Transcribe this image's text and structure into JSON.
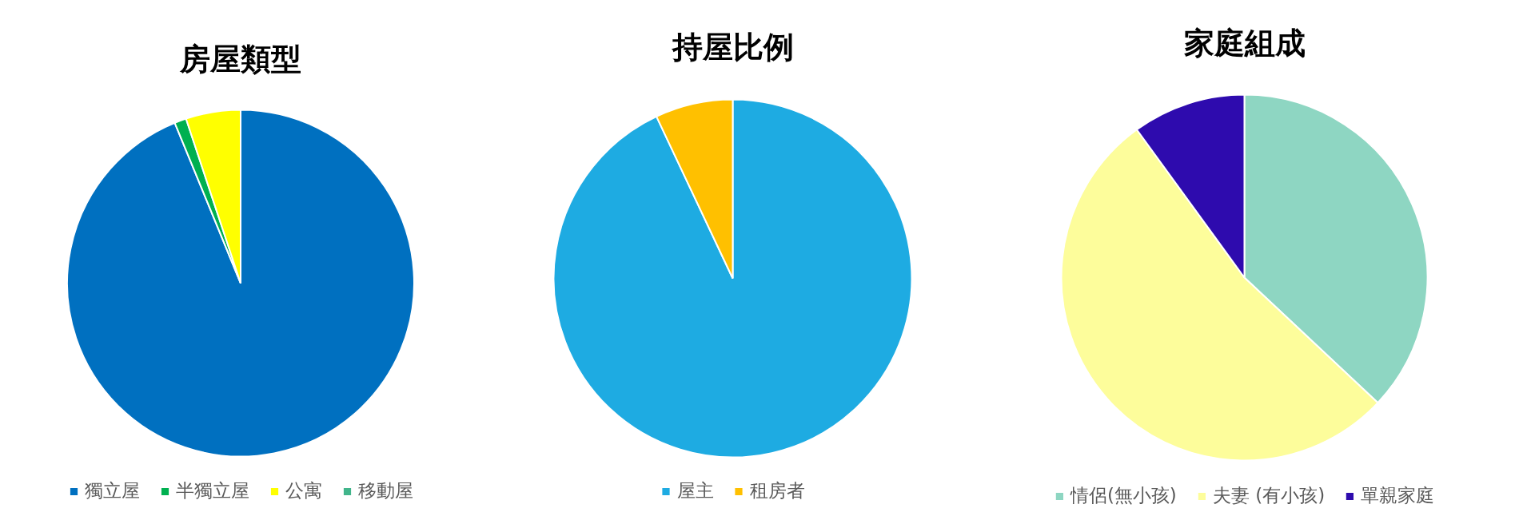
{
  "chart_data": [
    {
      "type": "pie",
      "title": "房屋類型",
      "categories": [
        "獨立屋",
        "半獨立屋",
        "公寓",
        "移動屋"
      ],
      "values": [
        93.8,
        1.1,
        5.1,
        0
      ],
      "colors": [
        "#0070c0",
        "#00b050",
        "#ffff00",
        "#41b58b"
      ],
      "legend": "bottom"
    },
    {
      "type": "pie",
      "title": "持屋比例",
      "categories": [
        "屋主",
        "租房者"
      ],
      "values": [
        93,
        7
      ],
      "colors": [
        "#1eabe2",
        "#ffc000"
      ],
      "legend": "bottom"
    },
    {
      "type": "pie",
      "title": "家庭組成",
      "categories": [
        "情侶(無小孩)",
        "夫妻 (有小孩)",
        "單親家庭"
      ],
      "values": [
        37,
        53,
        10
      ],
      "colors": [
        "#8ed6c2",
        "#fdfd9b",
        "#2e0bae"
      ],
      "legend": "bottom"
    }
  ]
}
